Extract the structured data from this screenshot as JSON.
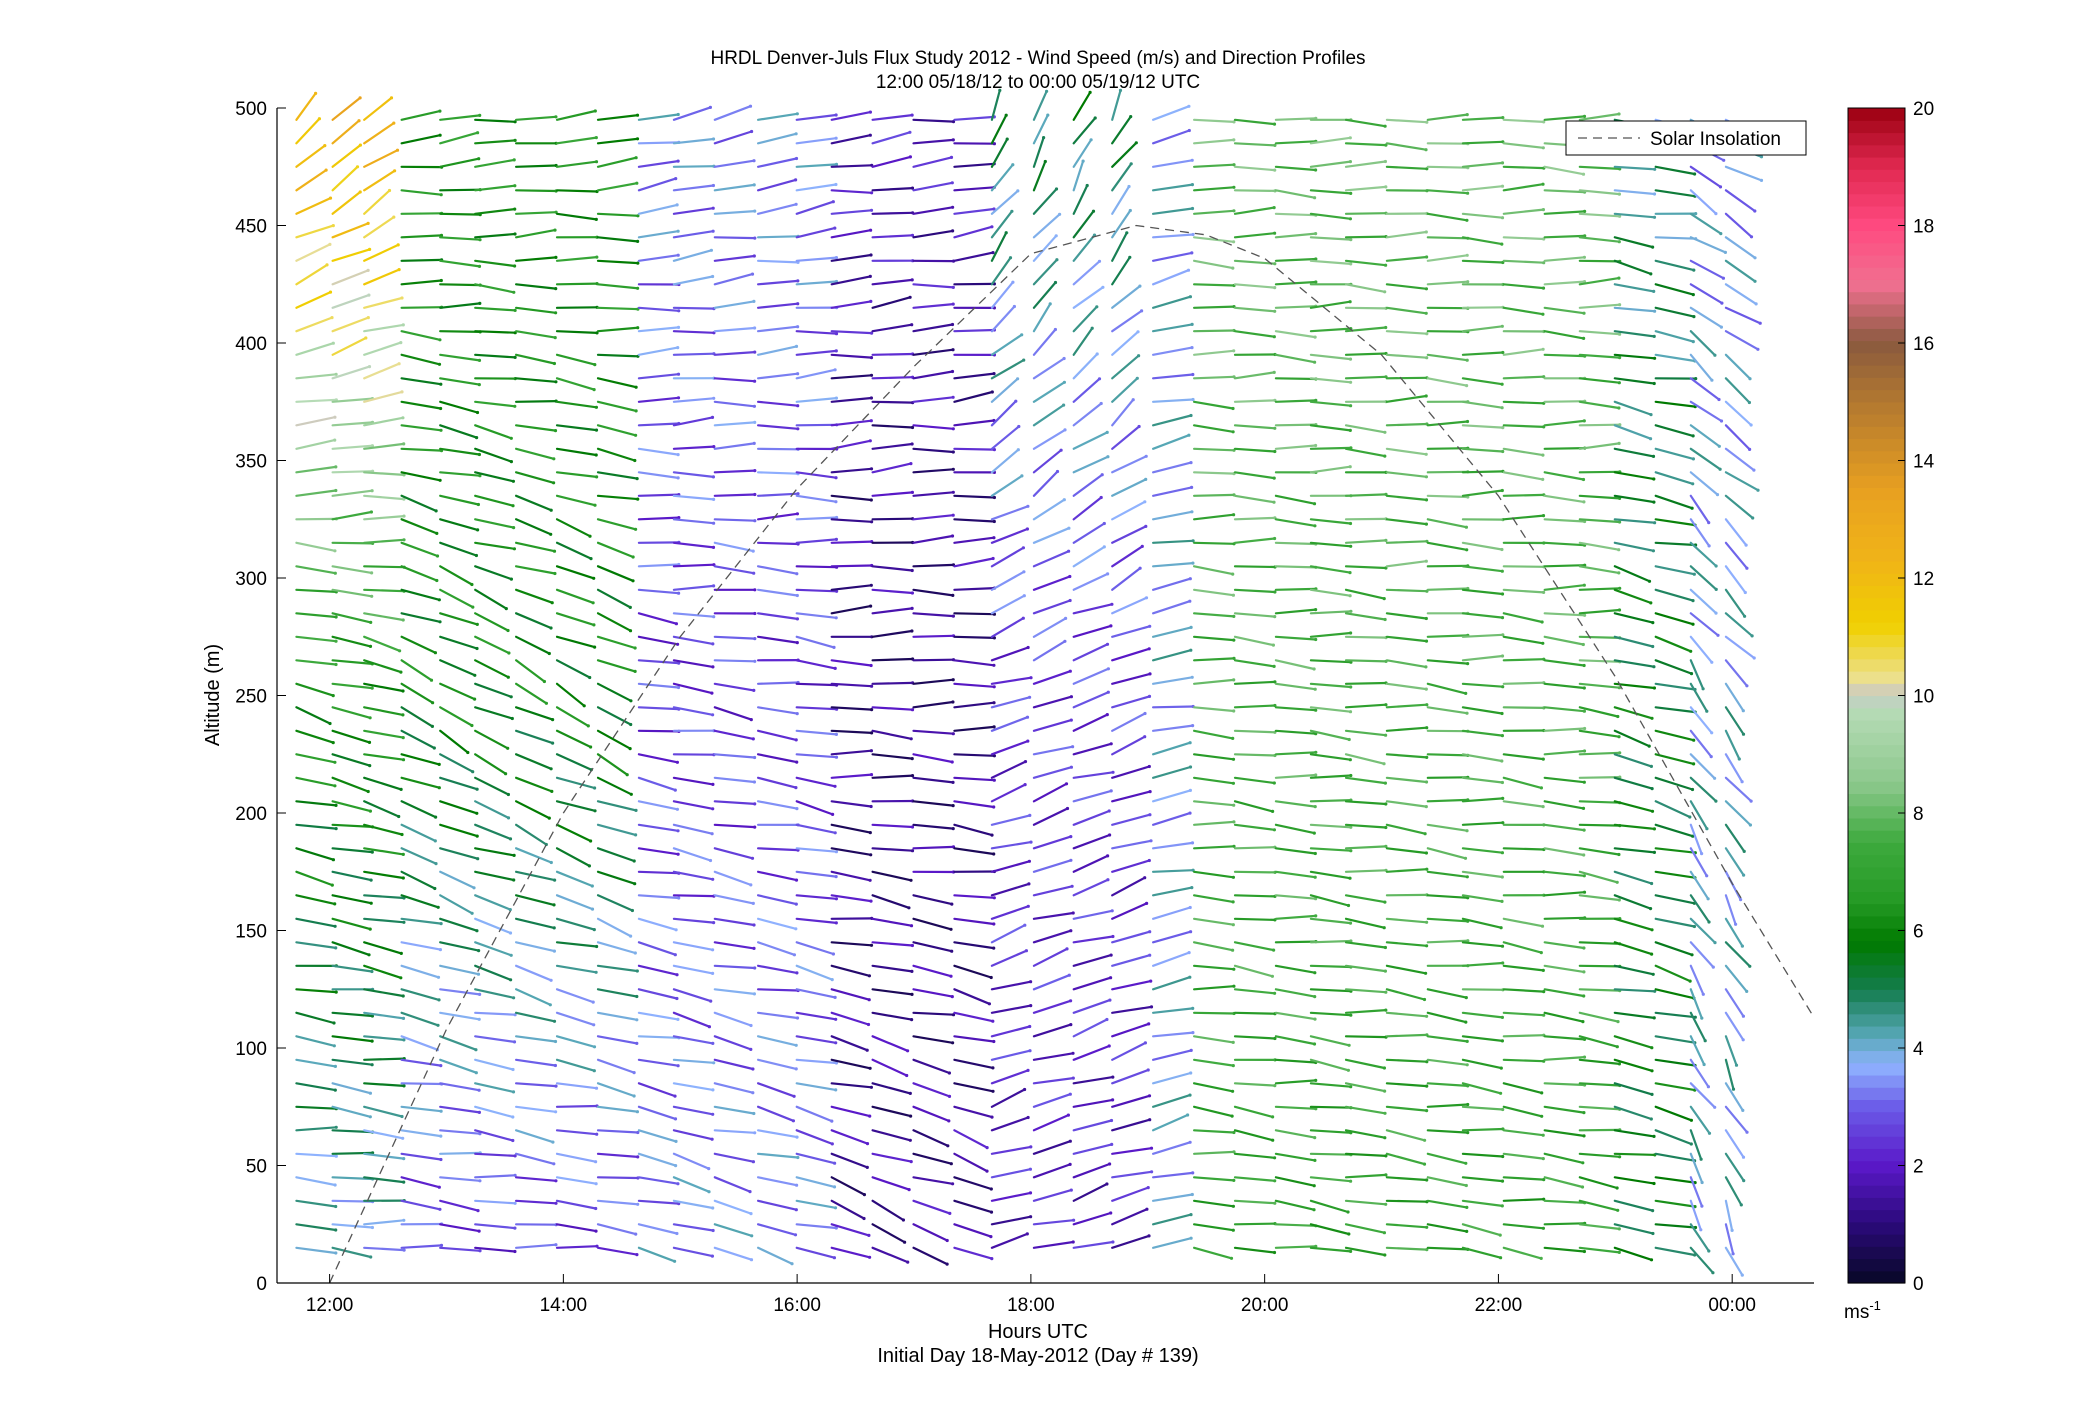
{
  "chart_data": {
    "type": "wind-barb",
    "title": "HRDL Denver-Juls Flux Study 2012 - Wind Speed (m/s) and Direction Profiles",
    "subtitle": "12:00 05/18/12 to 00:00 05/19/12  UTC",
    "xlabel": "Hours UTC",
    "xlabel2": "Initial Day 18-May-2012 (Day # 139)",
    "ylabel": "Altitude (m)",
    "xlim": [
      11.55,
      24.7
    ],
    "ylim": [
      0,
      500
    ],
    "xticks": [
      12,
      14,
      16,
      18,
      20,
      22,
      24
    ],
    "xtick_labels": [
      "12:00",
      "14:00",
      "16:00",
      "18:00",
      "20:00",
      "22:00",
      "00:00"
    ],
    "yticks": [
      0,
      50,
      100,
      150,
      200,
      250,
      300,
      350,
      400,
      450,
      500
    ],
    "ytick_labels": [
      "0",
      "50",
      "100",
      "150",
      "200",
      "250",
      "300",
      "350",
      "400",
      "450",
      "500"
    ],
    "legend": {
      "label": "Solar Insolation",
      "position": "top-right",
      "style": "dashed",
      "color": "#555555"
    },
    "colorbar": {
      "min": 0,
      "max": 20,
      "ticks": [
        0,
        2,
        4,
        6,
        8,
        10,
        12,
        14,
        16,
        18,
        20
      ],
      "tick_labels": [
        "0",
        "2",
        "4",
        "6",
        "8",
        "10",
        "12",
        "14",
        "16",
        "18",
        "20"
      ],
      "unit_label": "ms",
      "unit_exp": "-1",
      "stops": [
        [
          0,
          "#080826"
        ],
        [
          1,
          "#2a0a7a"
        ],
        [
          2,
          "#5a18c8"
        ],
        [
          3,
          "#6b5ce8"
        ],
        [
          3.7,
          "#8fb2ff"
        ],
        [
          4.2,
          "#58a8b8"
        ],
        [
          5,
          "#137c4c"
        ],
        [
          5.8,
          "#007a00"
        ],
        [
          6.5,
          "#259a25"
        ],
        [
          7.5,
          "#3eaa3e"
        ],
        [
          8.5,
          "#8cc88c"
        ],
        [
          9.8,
          "#b8dcb8"
        ],
        [
          10,
          "#c8c8c8"
        ],
        [
          10.3,
          "#ece08c"
        ],
        [
          11.2,
          "#f0d000"
        ],
        [
          12.3,
          "#f0b418"
        ],
        [
          13.5,
          "#e8a020"
        ],
        [
          15,
          "#b27830"
        ],
        [
          16,
          "#8a5a3e"
        ],
        [
          17,
          "#f07090"
        ],
        [
          18,
          "#ff4a80"
        ],
        [
          19,
          "#e02850"
        ],
        [
          20,
          "#9a0010"
        ]
      ]
    },
    "solar_insolation": {
      "x": [
        12.0,
        13.0,
        14.0,
        15.0,
        16.0,
        17.0,
        18.0,
        18.9,
        19.5,
        20.0,
        21.0,
        22.0,
        23.0,
        24.0,
        24.7
      ],
      "y": [
        0,
        108,
        200,
        275,
        338,
        390,
        438,
        450,
        446,
        436,
        395,
        335,
        258,
        170,
        113
      ]
    },
    "barbs": {
      "times": [
        11.87,
        12.18,
        12.45,
        12.77,
        13.1,
        13.4,
        13.75,
        14.1,
        14.45,
        14.8,
        15.1,
        15.45,
        15.82,
        16.15,
        16.45,
        16.8,
        17.15,
        17.5,
        17.82,
        18.18,
        18.52,
        18.85,
        19.2,
        19.55,
        19.9,
        20.25,
        20.55,
        20.85,
        21.2,
        21.55,
        21.85,
        22.2,
        22.55,
        22.85,
        23.15,
        23.5,
        23.8,
        24.1
      ],
      "altitudes": [
        15,
        25,
        35,
        45,
        55,
        65,
        75,
        85,
        95,
        105,
        115,
        125,
        135,
        145,
        155,
        165,
        175,
        185,
        195,
        205,
        215,
        225,
        235,
        245,
        255,
        265,
        275,
        285,
        295,
        305,
        315,
        325,
        335,
        345,
        355,
        365,
        375,
        385,
        395,
        405,
        415,
        425,
        435,
        445,
        455,
        465,
        475,
        485,
        495
      ],
      "note": "Wind vectors: direction the wind blows toward in degrees clockwise from north, speed in m/s; stems are drawn with length proportional to speed and colored by the speed colorbar.",
      "regimes": [
        {
          "from_hour": 11.8,
          "to_hour": 12.5,
          "low_dir": 95,
          "low_speed": 4.0,
          "mid_dir": 110,
          "mid_speed": 6.5,
          "high_dir": 40,
          "high_speed": 12.5
        },
        {
          "from_hour": 12.5,
          "to_hour": 14.5,
          "low_dir": 95,
          "low_speed": 2.5,
          "mid_dir": 125,
          "mid_speed": 6.0,
          "high_dir": 80,
          "high_speed": 6.5
        },
        {
          "from_hour": 14.5,
          "to_hour": 16.4,
          "low_dir": 110,
          "low_speed": 3.5,
          "mid_dir": 100,
          "mid_speed": 2.5,
          "high_dir": 75,
          "high_speed": 3.5
        },
        {
          "from_hour": 16.4,
          "to_hour": 17.7,
          "low_dir": 120,
          "low_speed": 1.5,
          "mid_dir": 90,
          "mid_speed": 1.2,
          "high_dir": 80,
          "high_speed": 2.0
        },
        {
          "from_hour": 17.7,
          "to_hour": 19.1,
          "low_dir": 70,
          "low_speed": 2.0,
          "mid_dir": 65,
          "mid_speed": 2.5,
          "high_dir": 20,
          "high_speed": 5.0
        },
        {
          "from_hour": 19.1,
          "to_hour": 19.45,
          "low_dir": 70,
          "low_speed": 3.8,
          "mid_dir": 75,
          "mid_speed": 3.8,
          "high_dir": 75,
          "high_speed": 3.8
        },
        {
          "from_hour": 19.45,
          "to_hour": 22.9,
          "low_dir": 100,
          "low_speed": 7.0,
          "mid_dir": 95,
          "mid_speed": 7.5,
          "high_dir": 90,
          "high_speed": 8.0
        },
        {
          "from_hour": 22.9,
          "to_hour": 23.6,
          "low_dir": 105,
          "low_speed": 5.5,
          "mid_dir": 110,
          "mid_speed": 5.5,
          "high_dir": 100,
          "high_speed": 4.5
        },
        {
          "from_hour": 23.6,
          "to_hour": 24.3,
          "low_dir": 160,
          "low_speed": 4.0,
          "mid_dir": 150,
          "mid_speed": 4.0,
          "high_dir": 125,
          "high_speed": 3.5
        }
      ]
    }
  }
}
